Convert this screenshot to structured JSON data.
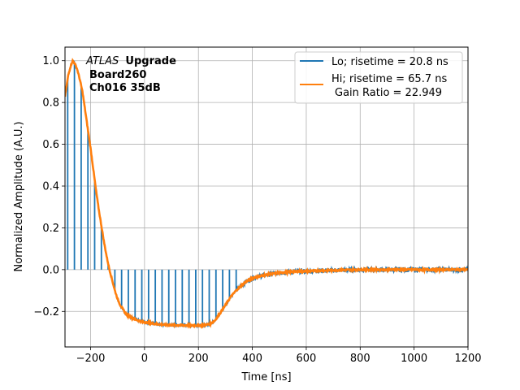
{
  "chart_data": {
    "type": "line",
    "title": "",
    "xlabel": "Time [ns]",
    "ylabel": "Normalized Amplitude (A.U.)",
    "xlim": [
      -295,
      1200
    ],
    "ylim": [
      -0.37,
      1.065
    ],
    "xticks": [
      -200,
      0,
      200,
      400,
      600,
      800,
      1000,
      1200
    ],
    "xtick_labels": [
      "−200",
      "0",
      "200",
      "400",
      "600",
      "800",
      "1000",
      "1200"
    ],
    "yticks": [
      -0.2,
      0.0,
      0.2,
      0.4,
      0.6,
      0.8,
      1.0
    ],
    "ytick_labels": [
      "−0.2",
      "0.0",
      "0.2",
      "0.4",
      "0.6",
      "0.8",
      "1.0"
    ],
    "grid": true,
    "legend_position": "top-right",
    "annotations": {
      "atlas": "ATLAS",
      "upgrade": "Upgrade",
      "board": "Board260",
      "channel": "Ch016 35dB"
    },
    "series": [
      {
        "name": "Lo; risetime = 20.8 ns",
        "color": "#1f77b4",
        "style": "sampled-spikes",
        "sample_spacing_ns": 25,
        "x": [
          -295,
          -283,
          -275,
          -267,
          -260,
          -250,
          -240,
          -230,
          -220,
          -210,
          -200,
          -190,
          -180,
          -170,
          -160,
          -150,
          -140,
          -130,
          -120,
          -110,
          -100,
          -90,
          -80,
          -70,
          -60,
          -50,
          -40,
          -30,
          -20,
          -10,
          0,
          20,
          40,
          60,
          80,
          100,
          120,
          140,
          160,
          180,
          200,
          220,
          240,
          260,
          280,
          300,
          320,
          340,
          360,
          380,
          400,
          450,
          500,
          550,
          600,
          650,
          700,
          800,
          900,
          1000,
          1100,
          1200
        ],
        "y": [
          0.83,
          0.93,
          0.97,
          1.0,
          0.99,
          0.96,
          0.91,
          0.85,
          0.76,
          0.67,
          0.58,
          0.48,
          0.38,
          0.29,
          0.21,
          0.13,
          0.06,
          0.0,
          -0.05,
          -0.1,
          -0.14,
          -0.17,
          -0.19,
          -0.21,
          -0.22,
          -0.23,
          -0.235,
          -0.24,
          -0.245,
          -0.25,
          -0.252,
          -0.255,
          -0.26,
          -0.262,
          -0.265,
          -0.265,
          -0.266,
          -0.266,
          -0.267,
          -0.267,
          -0.267,
          -0.265,
          -0.262,
          -0.245,
          -0.21,
          -0.17,
          -0.13,
          -0.1,
          -0.075,
          -0.055,
          -0.04,
          -0.025,
          -0.015,
          -0.01,
          -0.007,
          -0.005,
          -0.003,
          0.0,
          0.0,
          0.0,
          0.0,
          0.0
        ]
      },
      {
        "name": "Hi; risetime = 65.7 ns",
        "name_line2": "Gain Ratio = 22.949",
        "color": "#ff7f0e",
        "style": "line",
        "x": [
          -295,
          -283,
          -275,
          -267,
          -260,
          -250,
          -240,
          -230,
          -220,
          -210,
          -200,
          -190,
          -180,
          -170,
          -160,
          -150,
          -140,
          -130,
          -120,
          -110,
          -100,
          -90,
          -80,
          -70,
          -60,
          -50,
          -40,
          -30,
          -20,
          -10,
          0,
          20,
          40,
          60,
          80,
          100,
          120,
          140,
          160,
          180,
          200,
          220,
          240,
          260,
          280,
          300,
          320,
          340,
          360,
          380,
          400,
          450,
          500,
          550,
          600,
          650,
          700,
          800,
          900,
          1000,
          1100,
          1200
        ],
        "y": [
          0.83,
          0.93,
          0.97,
          1.0,
          0.99,
          0.96,
          0.91,
          0.85,
          0.76,
          0.67,
          0.58,
          0.48,
          0.38,
          0.29,
          0.21,
          0.13,
          0.06,
          0.0,
          -0.05,
          -0.1,
          -0.14,
          -0.17,
          -0.19,
          -0.21,
          -0.22,
          -0.23,
          -0.235,
          -0.24,
          -0.245,
          -0.25,
          -0.252,
          -0.255,
          -0.26,
          -0.262,
          -0.265,
          -0.265,
          -0.266,
          -0.266,
          -0.267,
          -0.267,
          -0.267,
          -0.265,
          -0.262,
          -0.245,
          -0.21,
          -0.17,
          -0.13,
          -0.1,
          -0.075,
          -0.055,
          -0.04,
          -0.025,
          -0.015,
          -0.01,
          -0.007,
          -0.005,
          -0.003,
          0.0,
          0.0,
          0.0,
          0.0,
          0.0
        ]
      }
    ]
  }
}
